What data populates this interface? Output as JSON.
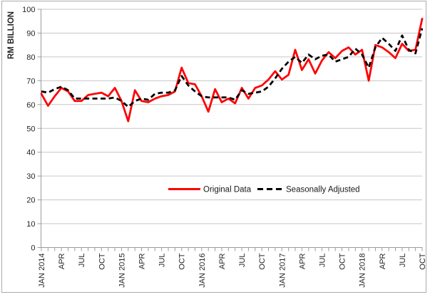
{
  "window": {
    "background": "#FFFFFF",
    "frame_border_color": "#ABABAB"
  },
  "colors": {
    "gridline": "#C6C6C6",
    "axis_line": "#9C9C9C",
    "tick_text": "#262626",
    "legend_text": "#1A1A1A"
  },
  "chart_data": {
    "type": "line",
    "title": "",
    "xlabel": "",
    "ylabel": "RM BILLION",
    "ylim": [
      0,
      100
    ],
    "ytick_step": 10,
    "grid": "horizontal",
    "legend_position": "bottom-center-inside",
    "x_unit": "month",
    "x_range": "JAN 2014 - OCT 2018",
    "x_tick_every": 3,
    "x_tick_labels": [
      "JAN 2014",
      "APR",
      "JUL",
      "OCT",
      "JAN 2015",
      "APR",
      "JUL",
      "OCT",
      "JAN 2016",
      "APR",
      "JUL",
      "OCT",
      "JAN 2017",
      "APR",
      "JUL",
      "OCT",
      "JAN 2018",
      "APR",
      "JUL",
      "OCT"
    ],
    "series": [
      {
        "name": "Original Data",
        "color": "#FF0000",
        "style": "solid",
        "values": [
          64.5,
          59.5,
          63.5,
          67,
          65.5,
          61.5,
          61.5,
          64,
          64.5,
          65,
          63.5,
          67,
          61.5,
          53,
          66,
          61.5,
          61,
          62.5,
          63.5,
          64,
          65.5,
          75.5,
          69,
          68.5,
          63.5,
          57,
          66.5,
          61,
          62.5,
          60.5,
          67,
          62.5,
          67,
          68,
          70.5,
          74,
          70.5,
          72.5,
          83,
          74.5,
          79,
          73,
          78.5,
          82,
          79.5,
          82.5,
          84,
          81,
          83,
          70,
          85,
          84,
          82,
          79.5,
          85.5,
          82.5,
          83,
          96
        ]
      },
      {
        "name": "Seasonally Adjusted",
        "color": "#000000",
        "style": "dashed",
        "values": [
          65.5,
          65,
          66.5,
          67.5,
          66,
          62.5,
          62.5,
          62.5,
          62.5,
          62.5,
          62.5,
          63,
          61.5,
          59,
          61.5,
          62.5,
          62,
          64.5,
          65,
          65,
          66,
          72,
          68,
          65.5,
          63.5,
          63,
          63,
          63,
          63,
          62,
          66,
          64.5,
          65,
          65.5,
          67.5,
          71,
          75,
          78,
          80,
          77.5,
          81,
          79,
          80.5,
          81,
          78,
          79,
          80,
          83.5,
          81,
          75.5,
          84,
          88,
          85.5,
          82.5,
          89,
          83,
          81.5,
          92
        ]
      }
    ]
  }
}
